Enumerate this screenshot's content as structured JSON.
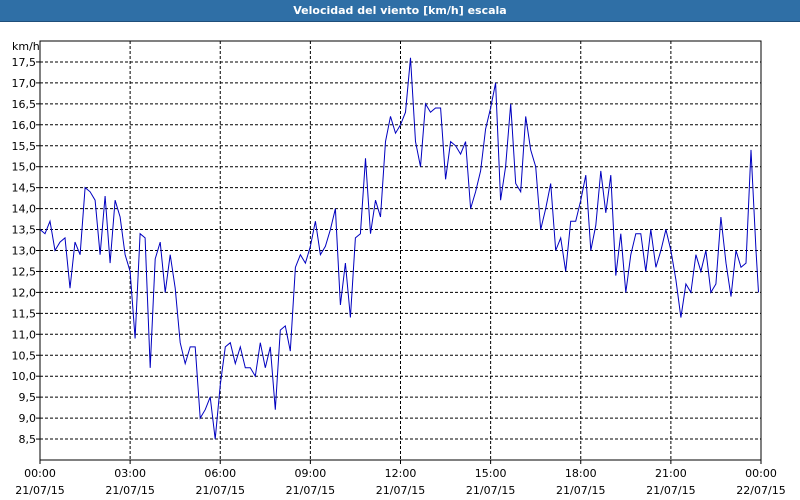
{
  "window": {
    "title": "Velocidad del viento [km/h] escala"
  },
  "colors": {
    "title_bar": "#2f6fa6",
    "series": "#0000c0",
    "grid": "#000000",
    "background": "#ffffff"
  },
  "chart_data": {
    "type": "line",
    "title": "Velocidad del viento [km/h] escala",
    "ylabel": "km/h",
    "xlabel": "",
    "grid": true,
    "ylim": [
      8.0,
      18.0
    ],
    "xlim": [
      "2015-07-21 00:00",
      "2015-07-22 00:00"
    ],
    "y_ticks": [
      "8,5",
      "9,0",
      "9,5",
      "10,0",
      "10,5",
      "11,0",
      "11,5",
      "12,0",
      "12,5",
      "13,0",
      "13,5",
      "14,0",
      "14,5",
      "15,0",
      "15,5",
      "16,0",
      "16,5",
      "17,0",
      "17,5"
    ],
    "x_ticks": [
      {
        "time": "00:00",
        "date": "21/07/15"
      },
      {
        "time": "03:00",
        "date": "21/07/15"
      },
      {
        "time": "06:00",
        "date": "21/07/15"
      },
      {
        "time": "09:00",
        "date": "21/07/15"
      },
      {
        "time": "12:00",
        "date": "21/07/15"
      },
      {
        "time": "15:00",
        "date": "21/07/15"
      },
      {
        "time": "18:00",
        "date": "21/07/15"
      },
      {
        "time": "21:00",
        "date": "21/07/15"
      },
      {
        "time": "00:00",
        "date": "22/07/15"
      }
    ],
    "series": [
      {
        "name": "",
        "points": [
          [
            "00:00",
            13.5
          ],
          [
            "00:10",
            13.4
          ],
          [
            "00:20",
            13.7
          ],
          [
            "00:30",
            13.0
          ],
          [
            "00:40",
            13.2
          ],
          [
            "00:50",
            13.3
          ],
          [
            "01:00",
            12.1
          ],
          [
            "01:10",
            13.2
          ],
          [
            "01:20",
            12.9
          ],
          [
            "01:30",
            14.5
          ],
          [
            "01:40",
            14.4
          ],
          [
            "01:50",
            14.2
          ],
          [
            "02:00",
            12.9
          ],
          [
            "02:10",
            14.3
          ],
          [
            "02:20",
            12.7
          ],
          [
            "02:30",
            14.2
          ],
          [
            "02:40",
            13.8
          ],
          [
            "02:50",
            12.9
          ],
          [
            "03:00",
            12.5
          ],
          [
            "03:10",
            10.9
          ],
          [
            "03:20",
            13.4
          ],
          [
            "03:30",
            13.3
          ],
          [
            "03:40",
            10.2
          ],
          [
            "03:50",
            12.8
          ],
          [
            "04:00",
            13.2
          ],
          [
            "04:10",
            12.0
          ],
          [
            "04:20",
            12.9
          ],
          [
            "04:30",
            12.1
          ],
          [
            "04:40",
            10.8
          ],
          [
            "04:50",
            10.3
          ],
          [
            "05:00",
            10.7
          ],
          [
            "05:10",
            10.7
          ],
          [
            "05:20",
            9.0
          ],
          [
            "05:30",
            9.2
          ],
          [
            "05:40",
            9.5
          ],
          [
            "05:50",
            8.5
          ],
          [
            "06:00",
            9.8
          ],
          [
            "06:10",
            10.7
          ],
          [
            "06:20",
            10.8
          ],
          [
            "06:30",
            10.3
          ],
          [
            "06:40",
            10.7
          ],
          [
            "06:50",
            10.2
          ],
          [
            "07:00",
            10.2
          ],
          [
            "07:10",
            10.0
          ],
          [
            "07:20",
            10.8
          ],
          [
            "07:30",
            10.2
          ],
          [
            "07:40",
            10.7
          ],
          [
            "07:50",
            9.2
          ],
          [
            "08:00",
            11.1
          ],
          [
            "08:10",
            11.2
          ],
          [
            "08:20",
            10.6
          ],
          [
            "08:30",
            12.6
          ],
          [
            "08:40",
            12.9
          ],
          [
            "08:50",
            12.7
          ],
          [
            "09:00",
            13.1
          ],
          [
            "09:10",
            13.7
          ],
          [
            "09:20",
            12.9
          ],
          [
            "09:30",
            13.1
          ],
          [
            "09:40",
            13.5
          ],
          [
            "09:50",
            14.0
          ],
          [
            "10:00",
            11.7
          ],
          [
            "10:10",
            12.7
          ],
          [
            "10:20",
            11.4
          ],
          [
            "10:30",
            13.3
          ],
          [
            "10:40",
            13.4
          ],
          [
            "10:50",
            15.2
          ],
          [
            "11:00",
            13.4
          ],
          [
            "11:10",
            14.2
          ],
          [
            "11:20",
            13.8
          ],
          [
            "11:30",
            15.6
          ],
          [
            "11:40",
            16.2
          ],
          [
            "11:50",
            15.8
          ],
          [
            "12:00",
            16.0
          ],
          [
            "12:10",
            16.3
          ],
          [
            "12:20",
            17.6
          ],
          [
            "12:30",
            15.6
          ],
          [
            "12:40",
            15.0
          ],
          [
            "12:50",
            16.5
          ],
          [
            "13:00",
            16.3
          ],
          [
            "13:10",
            16.4
          ],
          [
            "13:20",
            16.4
          ],
          [
            "13:30",
            14.7
          ],
          [
            "13:40",
            15.6
          ],
          [
            "13:50",
            15.5
          ],
          [
            "14:00",
            15.3
          ],
          [
            "14:10",
            15.6
          ],
          [
            "14:20",
            14.0
          ],
          [
            "14:30",
            14.4
          ],
          [
            "14:40",
            14.9
          ],
          [
            "14:50",
            15.9
          ],
          [
            "15:00",
            16.4
          ],
          [
            "15:10",
            17.0
          ],
          [
            "15:20",
            14.2
          ],
          [
            "15:30",
            15.0
          ],
          [
            "15:40",
            16.5
          ],
          [
            "15:50",
            14.6
          ],
          [
            "16:00",
            14.4
          ],
          [
            "16:10",
            16.2
          ],
          [
            "16:20",
            15.4
          ],
          [
            "16:30",
            15.0
          ],
          [
            "16:40",
            13.5
          ],
          [
            "16:50",
            14.0
          ],
          [
            "17:00",
            14.6
          ],
          [
            "17:10",
            13.0
          ],
          [
            "17:20",
            13.3
          ],
          [
            "17:30",
            12.5
          ],
          [
            "17:40",
            13.7
          ],
          [
            "17:50",
            13.7
          ],
          [
            "18:00",
            14.2
          ],
          [
            "18:10",
            14.8
          ],
          [
            "18:20",
            13.0
          ],
          [
            "18:30",
            13.6
          ],
          [
            "18:40",
            14.9
          ],
          [
            "18:50",
            13.9
          ],
          [
            "19:00",
            14.8
          ],
          [
            "19:10",
            12.4
          ],
          [
            "19:20",
            13.4
          ],
          [
            "19:30",
            12.0
          ],
          [
            "19:40",
            12.9
          ],
          [
            "19:50",
            13.4
          ],
          [
            "20:00",
            13.4
          ],
          [
            "20:10",
            12.5
          ],
          [
            "20:20",
            13.5
          ],
          [
            "20:30",
            12.6
          ],
          [
            "20:40",
            13.0
          ],
          [
            "20:50",
            13.5
          ],
          [
            "21:00",
            13.0
          ],
          [
            "21:10",
            12.3
          ],
          [
            "21:20",
            11.4
          ],
          [
            "21:30",
            12.2
          ],
          [
            "21:40",
            12.0
          ],
          [
            "21:50",
            12.9
          ],
          [
            "22:00",
            12.5
          ],
          [
            "22:10",
            13.0
          ],
          [
            "22:20",
            12.0
          ],
          [
            "22:30",
            12.2
          ],
          [
            "22:40",
            13.8
          ],
          [
            "22:50",
            12.7
          ],
          [
            "23:00",
            11.9
          ],
          [
            "23:10",
            13.0
          ],
          [
            "23:20",
            12.6
          ],
          [
            "23:30",
            12.7
          ],
          [
            "23:40",
            15.4
          ],
          [
            "23:50",
            13.0
          ],
          [
            "23:55",
            12.0
          ]
        ]
      }
    ]
  }
}
